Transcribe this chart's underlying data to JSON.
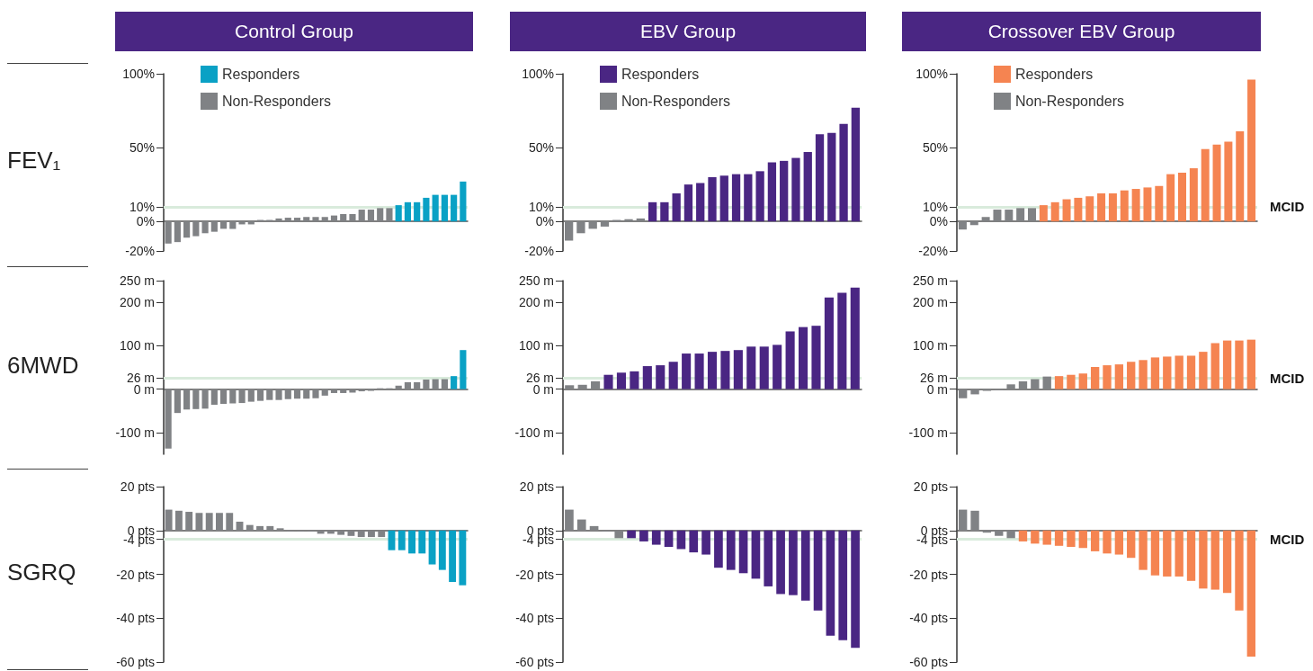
{
  "chart_data": [
    {
      "type": "bar",
      "title": "Control Group",
      "ylabel": "FEV₁",
      "categories": [
        null,
        null,
        null,
        null,
        null,
        null,
        null,
        null,
        null,
        null,
        null,
        null,
        null,
        null,
        null,
        null,
        null,
        null,
        null,
        null,
        null,
        null,
        null,
        null,
        null,
        null,
        null,
        null,
        null,
        null,
        null,
        null,
        null
      ],
      "series": [
        {
          "name": "Responders",
          "color": "#0aa1c5",
          "values": [
            null,
            null,
            null,
            null,
            null,
            null,
            null,
            null,
            null,
            null,
            null,
            null,
            null,
            null,
            null,
            null,
            null,
            null,
            null,
            null,
            null,
            null,
            null,
            null,
            null,
            11,
            13,
            13,
            16,
            18,
            18,
            18,
            27
          ]
        },
        {
          "name": "Non-Responders",
          "color": "#808285",
          "values": [
            -15,
            -14,
            -11,
            -10,
            -8,
            -7,
            -5,
            -5,
            -2,
            -2,
            1,
            1,
            2,
            2.5,
            2.5,
            3,
            3,
            3,
            4,
            5,
            5,
            8,
            8,
            9,
            9,
            null,
            null,
            null,
            null,
            null,
            null,
            null,
            null
          ]
        }
      ],
      "ylim": [
        -20,
        100
      ],
      "yticks": [
        {
          "value": -20,
          "label": "-20%"
        },
        {
          "value": 0,
          "label": "0%"
        },
        {
          "value": 10,
          "label": "10%"
        },
        {
          "value": 50,
          "label": "50%"
        },
        {
          "value": 100,
          "label": "100%"
        }
      ],
      "ref_lines": [
        {
          "axis": "y",
          "value": 10,
          "color": "#d9ebdc"
        }
      ],
      "legend": "top left",
      "grid": false
    },
    {
      "type": "bar",
      "title": "EBV Group",
      "categories": [
        null,
        null,
        null,
        null,
        null,
        null,
        null,
        null,
        null,
        null,
        null,
        null,
        null,
        null,
        null,
        null,
        null,
        null,
        null,
        null,
        null,
        null,
        null,
        null,
        null
      ],
      "series": [
        {
          "name": "Responders",
          "color": "#4a2683",
          "values": [
            null,
            null,
            null,
            null,
            null,
            null,
            null,
            13,
            13,
            19,
            25,
            26,
            30,
            31,
            32,
            32,
            34,
            40,
            41,
            43,
            47,
            59,
            60,
            66,
            77
          ]
        },
        {
          "name": "Non-Responders",
          "color": "#808285",
          "values": [
            -13,
            -8,
            -5,
            -3.5,
            1,
            1.5,
            2,
            null,
            null,
            null,
            null,
            null,
            null,
            null,
            null,
            null,
            null,
            null,
            null,
            null,
            null,
            null,
            null,
            null,
            null
          ]
        }
      ],
      "ylim": [
        -20,
        100
      ],
      "yticks": [
        {
          "value": -20,
          "label": "-20%"
        },
        {
          "value": 0,
          "label": "0%"
        },
        {
          "value": 10,
          "label": "10%"
        },
        {
          "value": 50,
          "label": "50%"
        },
        {
          "value": 100,
          "label": "100%"
        }
      ],
      "ref_lines": [
        {
          "axis": "y",
          "value": 10,
          "color": "#d9ebdc"
        }
      ],
      "legend": "top left",
      "grid": false
    },
    {
      "type": "bar",
      "title": "Crossover EBV Group",
      "categories": [
        null,
        null,
        null,
        null,
        null,
        null,
        null,
        null,
        null,
        null,
        null,
        null,
        null,
        null,
        null,
        null,
        null,
        null,
        null,
        null,
        null,
        null,
        null,
        null,
        null,
        null
      ],
      "series": [
        {
          "name": "Responders",
          "color": "#f58451",
          "values": [
            null,
            null,
            null,
            null,
            null,
            null,
            null,
            11,
            13,
            15,
            16,
            17,
            19,
            19,
            21,
            22,
            23,
            24,
            32,
            33,
            36,
            49,
            52,
            54,
            61,
            96
          ]
        },
        {
          "name": "Non-Responders",
          "color": "#808285",
          "values": [
            -5.5,
            -2.5,
            3,
            8,
            8,
            9,
            9,
            null,
            null,
            null,
            null,
            null,
            null,
            null,
            null,
            null,
            null,
            null,
            null,
            null,
            null,
            null,
            null,
            null,
            null,
            null
          ]
        }
      ],
      "ylim": [
        -20,
        100
      ],
      "yticks": [
        {
          "value": -20,
          "label": "-20%"
        },
        {
          "value": 0,
          "label": "0%"
        },
        {
          "value": 10,
          "label": "10%"
        },
        {
          "value": 50,
          "label": "50%"
        },
        {
          "value": 100,
          "label": "100%"
        }
      ],
      "ref_lines": [
        {
          "axis": "y",
          "value": 10,
          "color": "#d9ebdc",
          "label": "MCID"
        }
      ],
      "legend": "top left",
      "grid": false
    },
    {
      "type": "bar",
      "ylabel": "6MWD",
      "categories": [
        null,
        null,
        null,
        null,
        null,
        null,
        null,
        null,
        null,
        null,
        null,
        null,
        null,
        null,
        null,
        null,
        null,
        null,
        null,
        null,
        null,
        null,
        null,
        null,
        null,
        null,
        null,
        null,
        null,
        null,
        null,
        null,
        null
      ],
      "series": [
        {
          "color": "#0aa1c5",
          "values": [
            null,
            null,
            null,
            null,
            null,
            null,
            null,
            null,
            null,
            null,
            null,
            null,
            null,
            null,
            null,
            null,
            null,
            null,
            null,
            null,
            null,
            null,
            null,
            null,
            null,
            null,
            null,
            null,
            null,
            null,
            null,
            30,
            90
          ]
        },
        {
          "color": "#808285",
          "values": [
            -137,
            -55,
            -47,
            -46,
            -45,
            -36,
            -34,
            -33,
            -32,
            -29,
            -27,
            -25,
            -25,
            -23,
            -22,
            -22,
            -21,
            -15,
            -9,
            -9,
            -8,
            -5,
            -4,
            2,
            2,
            8,
            16,
            16,
            22,
            23,
            23,
            null,
            null
          ]
        }
      ],
      "ylim": [
        -150,
        250
      ],
      "yticks": [
        {
          "value": -100,
          "label": "-100 m"
        },
        {
          "value": 0,
          "label": "0 m"
        },
        {
          "value": 26,
          "label": "26 m"
        },
        {
          "value": 100,
          "label": "100 m"
        },
        {
          "value": 200,
          "label": "200 m"
        },
        {
          "value": 250,
          "label": "250 m"
        }
      ],
      "ref_lines": [
        {
          "axis": "y",
          "value": 26,
          "color": "#d9ebdc"
        }
      ],
      "grid": false
    },
    {
      "type": "bar",
      "categories": [
        null,
        null,
        null,
        null,
        null,
        null,
        null,
        null,
        null,
        null,
        null,
        null,
        null,
        null,
        null,
        null,
        null,
        null,
        null,
        null,
        null,
        null,
        null
      ],
      "series": [
        {
          "color": "#4a2683",
          "values": [
            null,
            null,
            null,
            33,
            38,
            41,
            53,
            55,
            63,
            82,
            82,
            86,
            88,
            90,
            98,
            98,
            102,
            133,
            143,
            146,
            211,
            222,
            234
          ]
        },
        {
          "color": "#808285",
          "values": [
            9,
            10,
            18,
            null,
            null,
            null,
            null,
            null,
            null,
            null,
            null,
            null,
            null,
            null,
            null,
            null,
            null,
            null,
            null,
            null,
            null,
            null,
            null
          ]
        }
      ],
      "ylim": [
        -150,
        250
      ],
      "yticks": [
        {
          "value": -100,
          "label": "-100 m"
        },
        {
          "value": 0,
          "label": "0 m"
        },
        {
          "value": 26,
          "label": "26 m"
        },
        {
          "value": 100,
          "label": "100 m"
        },
        {
          "value": 200,
          "label": "200 m"
        },
        {
          "value": 250,
          "label": "250 m"
        }
      ],
      "ref_lines": [
        {
          "axis": "y",
          "value": 26,
          "color": "#d9ebdc"
        }
      ],
      "grid": false
    },
    {
      "type": "bar",
      "categories": [
        null,
        null,
        null,
        null,
        null,
        null,
        null,
        null,
        null,
        null,
        null,
        null,
        null,
        null,
        null,
        null,
        null,
        null,
        null,
        null,
        null,
        null,
        null,
        null,
        null
      ],
      "series": [
        {
          "color": "#f58451",
          "values": [
            null,
            null,
            null,
            null,
            null,
            null,
            null,
            null,
            30,
            33,
            36,
            51,
            55,
            57,
            63,
            67,
            73,
            75,
            77,
            77,
            86,
            106,
            112,
            112,
            114
          ]
        },
        {
          "color": "#808285",
          "values": [
            -21,
            -12,
            -4,
            -3,
            11,
            18,
            23,
            29,
            null,
            null,
            null,
            null,
            null,
            null,
            null,
            null,
            null,
            null,
            null,
            null,
            null,
            null,
            null,
            null,
            null
          ]
        }
      ],
      "ylim": [
        -150,
        250
      ],
      "yticks": [
        {
          "value": -100,
          "label": "-100 m"
        },
        {
          "value": 0,
          "label": "0 m"
        },
        {
          "value": 26,
          "label": "26 m"
        },
        {
          "value": 100,
          "label": "100 m"
        },
        {
          "value": 200,
          "label": "200 m"
        },
        {
          "value": 250,
          "label": "250 m"
        }
      ],
      "ref_lines": [
        {
          "axis": "y",
          "value": 26,
          "color": "#d9ebdc",
          "label": "MCID"
        }
      ],
      "grid": false
    },
    {
      "type": "bar",
      "ylabel": "SGRQ",
      "categories": [
        null,
        null,
        null,
        null,
        null,
        null,
        null,
        null,
        null,
        null,
        null,
        null,
        null,
        null,
        null,
        null,
        null,
        null,
        null,
        null,
        null,
        null,
        null,
        null,
        null,
        null,
        null,
        null,
        null,
        null
      ],
      "series": [
        {
          "color": "#0aa1c5",
          "values": [
            null,
            null,
            null,
            null,
            null,
            null,
            null,
            null,
            null,
            null,
            null,
            null,
            null,
            null,
            null,
            null,
            null,
            null,
            null,
            null,
            null,
            null,
            -9,
            -9,
            -10.5,
            -10.5,
            -15.5,
            -18,
            -23.5,
            -25
          ]
        },
        {
          "color": "#808285",
          "values": [
            9.5,
            9,
            8.5,
            8,
            8,
            8,
            8,
            4,
            2.5,
            2,
            2,
            1,
            -0.5,
            -0.5,
            -0.5,
            -1.5,
            -1.5,
            -2,
            -2.5,
            -3,
            -3,
            -3,
            null,
            null,
            null,
            null,
            null,
            null,
            null,
            null
          ]
        }
      ],
      "ylim": [
        -60,
        20
      ],
      "yticks": [
        {
          "value": -60,
          "label": "-60 pts"
        },
        {
          "value": -40,
          "label": "-40 pts"
        },
        {
          "value": -20,
          "label": "-20 pts"
        },
        {
          "value": -4,
          "label": "-4 pts"
        },
        {
          "value": 0,
          "label": "0 pts"
        },
        {
          "value": 20,
          "label": "20 pts"
        }
      ],
      "ref_lines": [
        {
          "axis": "y",
          "value": -4,
          "color": "#d9ebdc"
        }
      ],
      "grid": false
    },
    {
      "type": "bar",
      "categories": [
        null,
        null,
        null,
        null,
        null,
        null,
        null,
        null,
        null,
        null,
        null,
        null,
        null,
        null,
        null,
        null,
        null,
        null,
        null,
        null,
        null,
        null,
        null,
        null
      ],
      "series": [
        {
          "color": "#4a2683",
          "values": [
            null,
            null,
            null,
            null,
            null,
            -3.5,
            -5,
            -6.5,
            -7.5,
            -8.5,
            -10,
            -11,
            -17,
            -18,
            -19.5,
            -22,
            -25.5,
            -29,
            -29.5,
            -32,
            -36.5,
            -48,
            -50,
            -53.5
          ]
        },
        {
          "color": "#808285",
          "values": [
            9.5,
            5,
            2,
            -0.5,
            -3.5,
            null,
            null,
            null,
            null,
            null,
            null,
            null,
            null,
            null,
            null,
            null,
            null,
            null,
            null,
            null,
            null,
            null,
            null,
            null
          ]
        }
      ],
      "ylim": [
        -60,
        20
      ],
      "yticks": [
        {
          "value": -60,
          "label": "-60 pts"
        },
        {
          "value": -40,
          "label": "-40 pts"
        },
        {
          "value": -20,
          "label": "-20 pts"
        },
        {
          "value": -4,
          "label": "-4 pts"
        },
        {
          "value": 0,
          "label": "0 pts"
        },
        {
          "value": 20,
          "label": "20 pts"
        }
      ],
      "ref_lines": [
        {
          "axis": "y",
          "value": -4,
          "color": "#d9ebdc"
        }
      ],
      "grid": false
    },
    {
      "type": "bar",
      "categories": [
        null,
        null,
        null,
        null,
        null,
        null,
        null,
        null,
        null,
        null,
        null,
        null,
        null,
        null,
        null,
        null,
        null,
        null,
        null,
        null,
        null,
        null,
        null,
        null,
        null
      ],
      "series": [
        {
          "color": "#f58451",
          "values": [
            null,
            null,
            null,
            null,
            null,
            -5,
            -6,
            -6.5,
            -7,
            -7.5,
            -8,
            -9.5,
            -10.5,
            -11,
            -12.5,
            -18,
            -20.5,
            -21,
            -21,
            -23,
            -26.5,
            -27,
            -28.5,
            -36.5,
            -57.5
          ]
        },
        {
          "color": "#808285",
          "values": [
            9.5,
            9,
            -1,
            -2.5,
            -3.5,
            null,
            null,
            null,
            null,
            null,
            null,
            null,
            null,
            null,
            null,
            null,
            null,
            null,
            null,
            null,
            null,
            null,
            null,
            null,
            null
          ]
        }
      ],
      "ylim": [
        -60,
        20
      ],
      "yticks": [
        {
          "value": -60,
          "label": "-60 pts"
        },
        {
          "value": -40,
          "label": "-40 pts"
        },
        {
          "value": -20,
          "label": "-20 pts"
        },
        {
          "value": -4,
          "label": "-4 pts"
        },
        {
          "value": 0,
          "label": "0 pts"
        },
        {
          "value": 20,
          "label": "20 pts"
        }
      ],
      "ref_lines": [
        {
          "axis": "y",
          "value": -4,
          "color": "#d9ebdc",
          "label": "MCID"
        }
      ],
      "grid": false
    }
  ]
}
